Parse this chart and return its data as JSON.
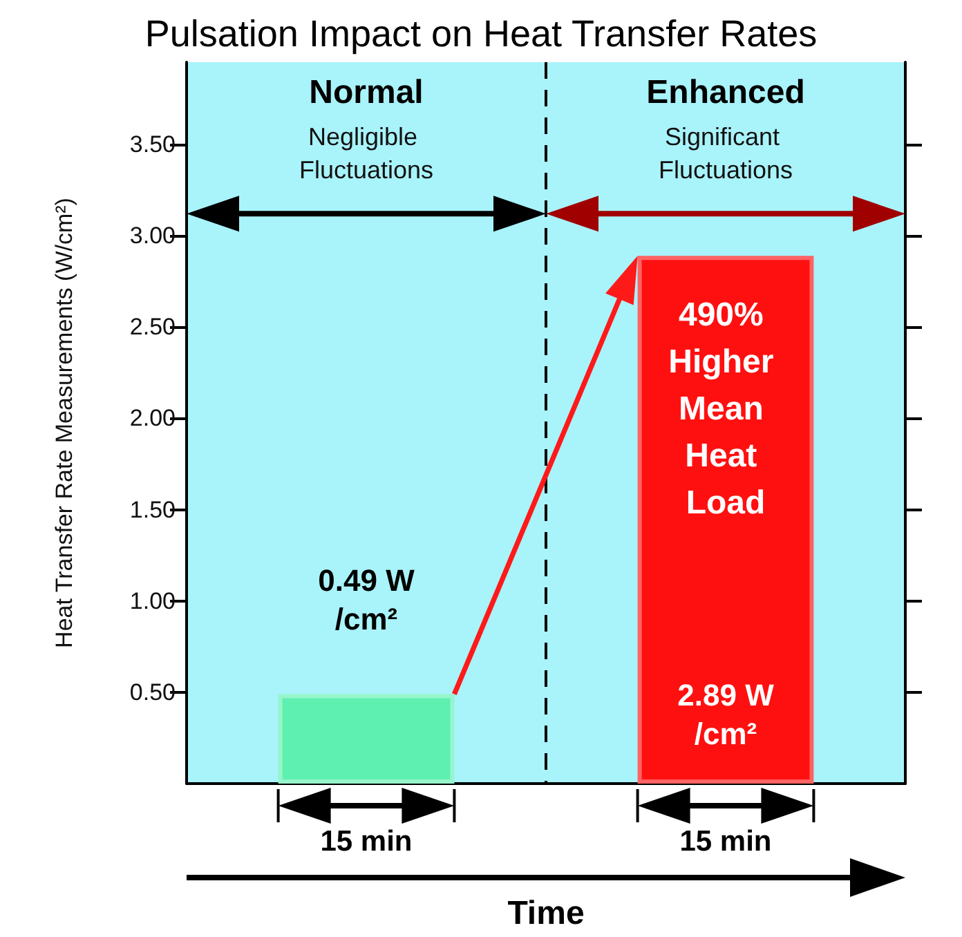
{
  "chart_data": {
    "type": "bar",
    "title": "Pulsation Impact on Heat Transfer Rates",
    "xlabel": "Time",
    "ylabel": "Heat Transfer Rate Measurements (W/cm²)",
    "categories": [
      "Normal",
      "Enhanced"
    ],
    "values": [
      0.49,
      2.89
    ],
    "colors": [
      "#5ef0b0",
      "#ff1010"
    ],
    "value_labels": [
      "0.49 W/cm²",
      "2.89 W/cm²"
    ],
    "ylim": [
      0,
      3.95
    ],
    "yticks": [
      {
        "value": 0.5,
        "label": "0.50"
      },
      {
        "value": 1,
        "label": "1.00"
      },
      {
        "value": 1.5,
        "label": "1.50"
      },
      {
        "value": 2,
        "label": "2.00"
      },
      {
        "value": 2.5,
        "label": "2.50"
      },
      {
        "value": 3,
        "label": "3.00"
      },
      {
        "value": 3.5,
        "label": "3.50"
      }
    ],
    "annotations": [
      "Negligible Fluctuations",
      "Significant Fluctuations",
      "490% Higher Mean Heat Load",
      "15 min",
      "15 min"
    ]
  }
}
